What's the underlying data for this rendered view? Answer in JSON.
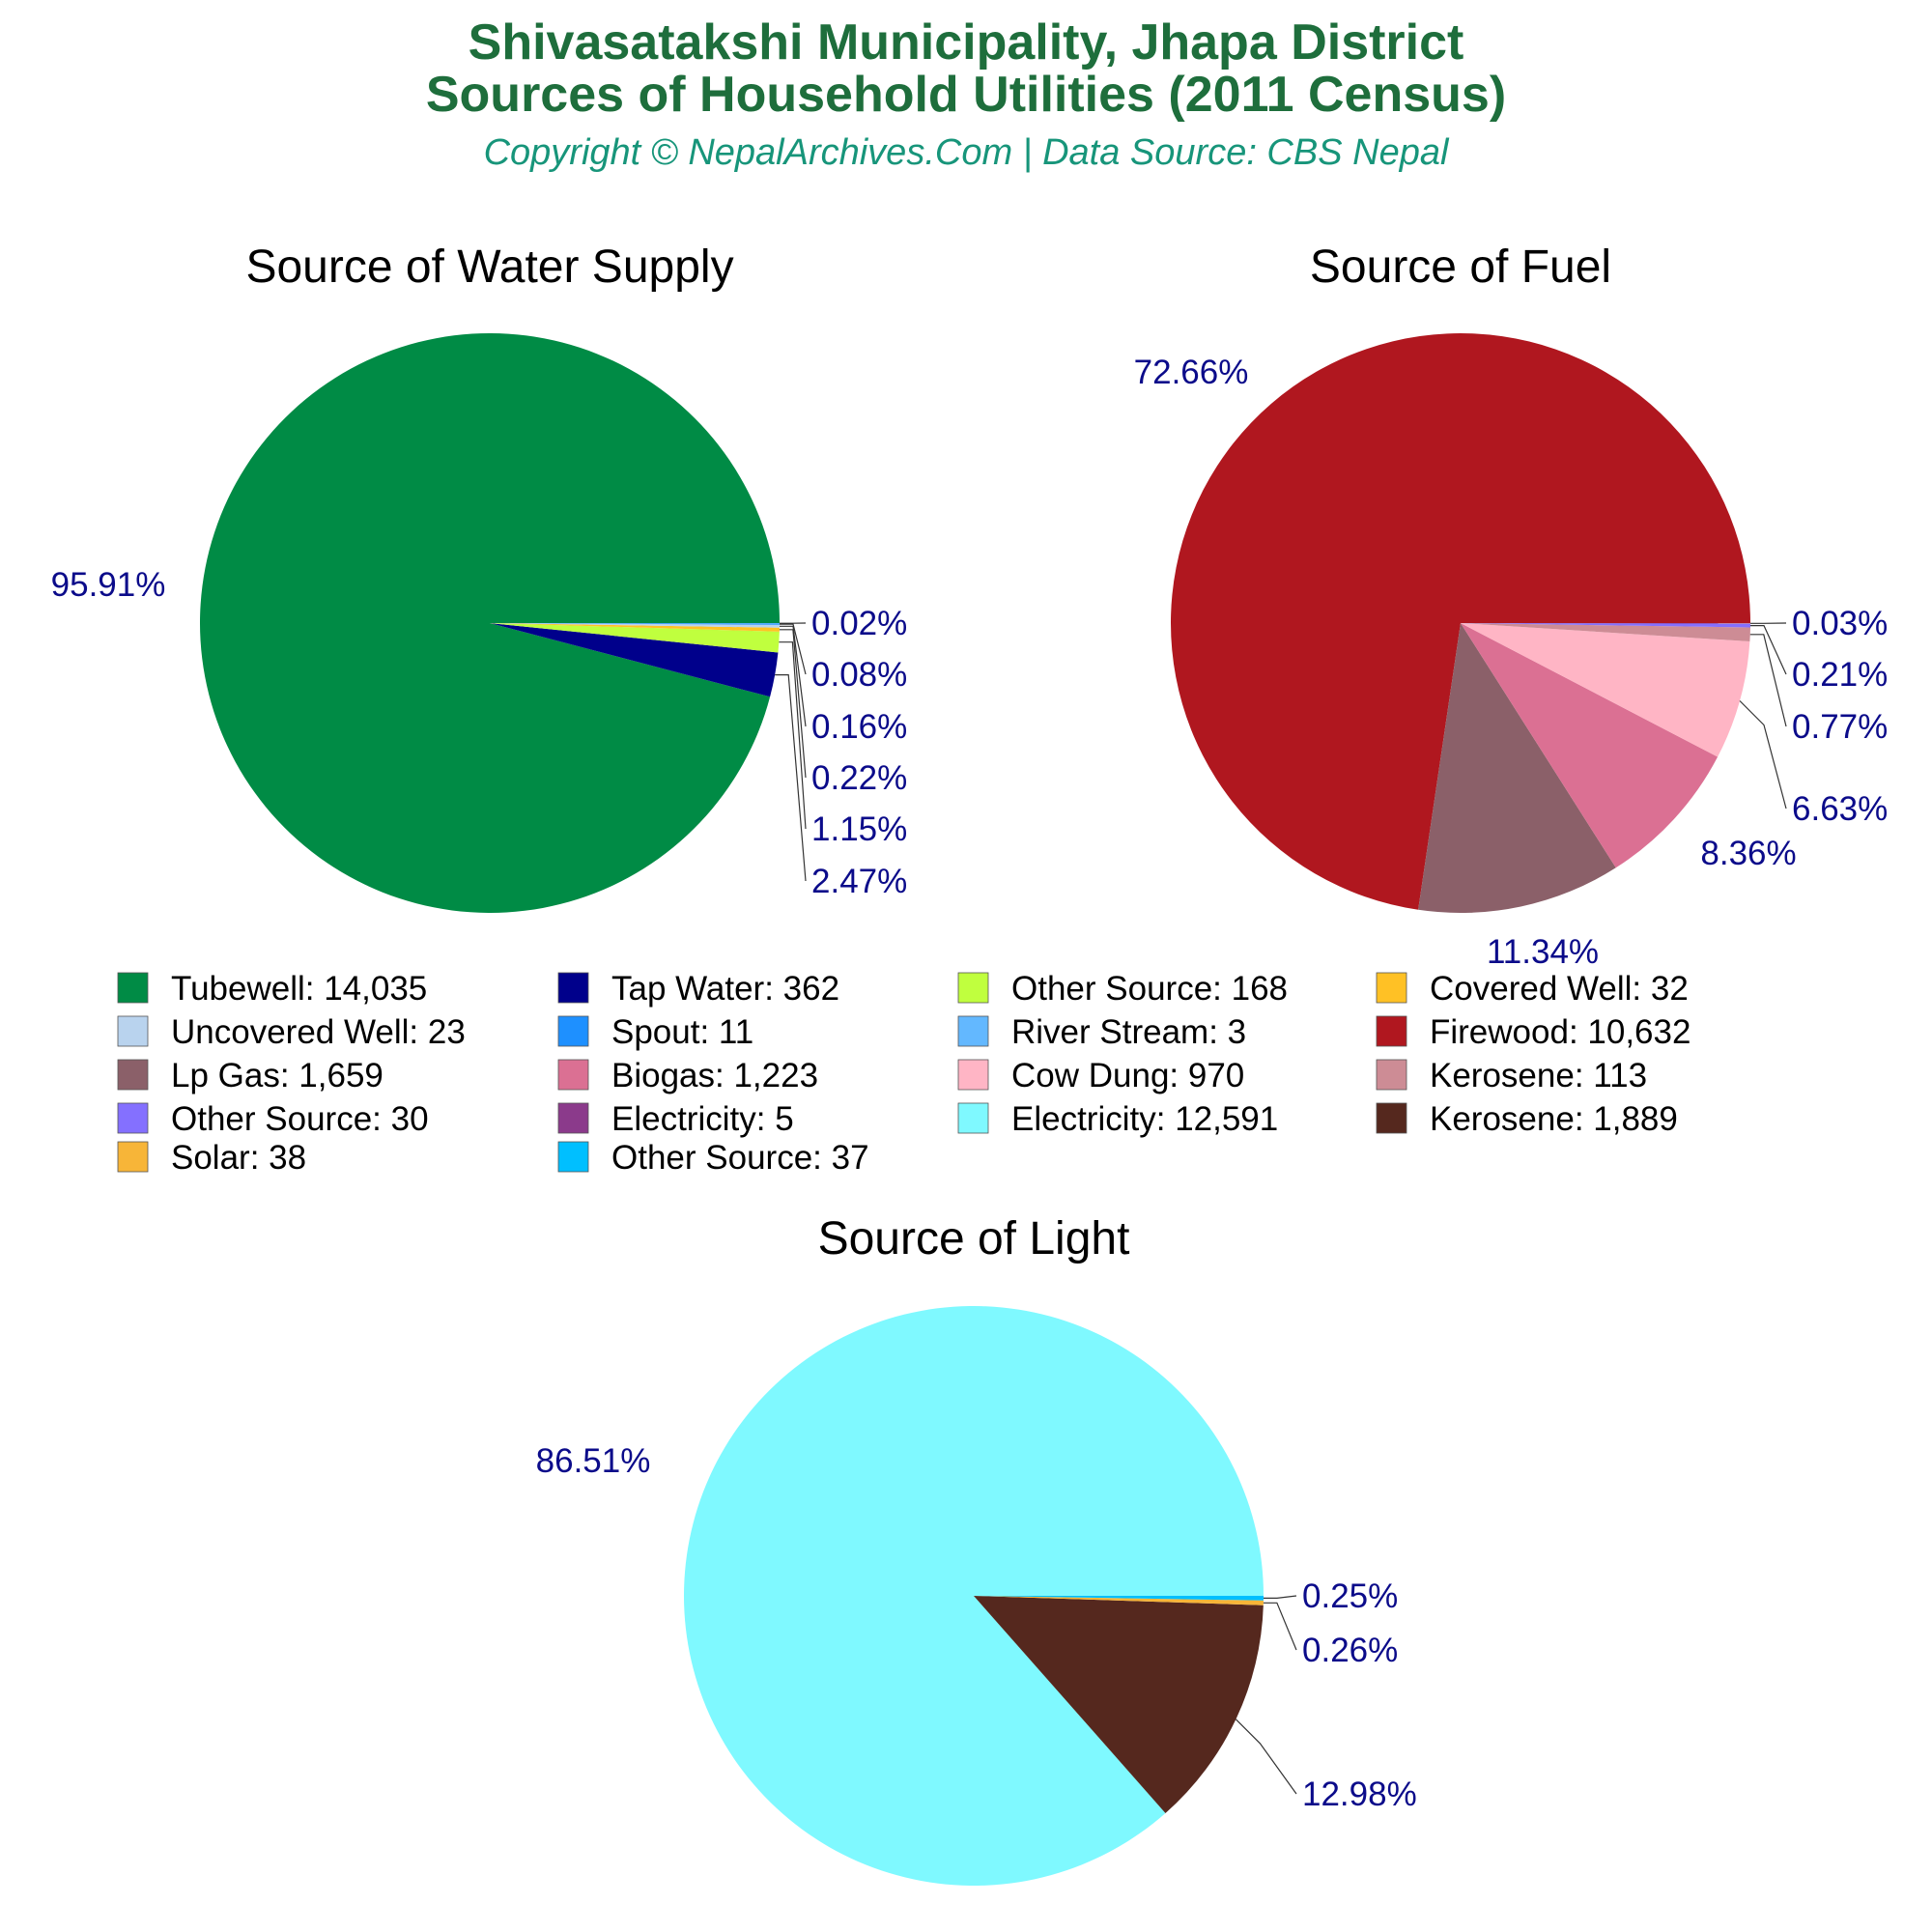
{
  "header": {
    "title_line1": "Shivasatakshi Municipality, Jhapa District",
    "title_line2": "Sources of Household Utilities (2011 Census)",
    "subtitle": "Copyright © NepalArchives.Com | Data Source: CBS Nepal"
  },
  "chart_data": [
    {
      "type": "pie",
      "title": "Source of Water Supply",
      "slices": [
        {
          "label": "Tubewell",
          "value": 14035,
          "percent": "95.91%",
          "color": "#008b45"
        },
        {
          "label": "Tap Water",
          "value": 362,
          "percent": "2.47%",
          "color": "#00008b"
        },
        {
          "label": "Other Source",
          "value": 168,
          "percent": "1.15%",
          "color": "#c0ff3e"
        },
        {
          "label": "Covered Well",
          "value": 32,
          "percent": "0.22%",
          "color": "#ffc125"
        },
        {
          "label": "Uncovered Well",
          "value": 23,
          "percent": "0.16%",
          "color": "#b9d3ee"
        },
        {
          "label": "Spout",
          "value": 11,
          "percent": "0.08%",
          "color": "#1e90ff"
        },
        {
          "label": "River Stream",
          "value": 3,
          "percent": "0.02%",
          "color": "#63b8ff"
        }
      ]
    },
    {
      "type": "pie",
      "title": "Source of Fuel",
      "slices": [
        {
          "label": "Firewood",
          "value": 10632,
          "percent": "72.66%",
          "color": "#b0171f"
        },
        {
          "label": "Lp Gas",
          "value": 1659,
          "percent": "11.34%",
          "color": "#8b6069"
        },
        {
          "label": "Biogas",
          "value": 1223,
          "percent": "8.36%",
          "color": "#db7093"
        },
        {
          "label": "Cow Dung",
          "value": 970,
          "percent": "6.63%",
          "color": "#ffb5c5"
        },
        {
          "label": "Kerosene",
          "value": 113,
          "percent": "0.77%",
          "color": "#cd8c95"
        },
        {
          "label": "Other Source",
          "value": 30,
          "percent": "0.21%",
          "color": "#8470ff"
        },
        {
          "label": "Electricity",
          "value": 5,
          "percent": "0.03%",
          "color": "#8b3a8b"
        }
      ]
    },
    {
      "type": "pie",
      "title": "Source of Light",
      "slices": [
        {
          "label": "Electricity",
          "value": 12591,
          "percent": "86.51%",
          "color": "#7ff9ff"
        },
        {
          "label": "Kerosene",
          "value": 1889,
          "percent": "12.98%",
          "color": "#55281e"
        },
        {
          "label": "Solar",
          "value": 38,
          "percent": "0.26%",
          "color": "#f7b538"
        },
        {
          "label": "Other Source",
          "value": 37,
          "percent": "0.25%",
          "color": "#00bfff"
        }
      ]
    }
  ],
  "legend": [
    {
      "text": "Tubewell: 14,035",
      "color": "#008b45"
    },
    {
      "text": "Tap Water: 362",
      "color": "#00008b"
    },
    {
      "text": "Other Source: 168",
      "color": "#c0ff3e"
    },
    {
      "text": "Covered Well: 32",
      "color": "#ffc125"
    },
    {
      "text": "Uncovered Well: 23",
      "color": "#b9d3ee"
    },
    {
      "text": "Spout: 11",
      "color": "#1e90ff"
    },
    {
      "text": "River Stream: 3",
      "color": "#63b8ff"
    },
    {
      "text": "Firewood: 10,632",
      "color": "#b0171f"
    },
    {
      "text": "Lp Gas: 1,659",
      "color": "#8b6069"
    },
    {
      "text": "Biogas: 1,223",
      "color": "#db7093"
    },
    {
      "text": "Cow Dung: 970",
      "color": "#ffb5c5"
    },
    {
      "text": "Kerosene: 113",
      "color": "#cd8c95"
    },
    {
      "text": "Other Source: 30",
      "color": "#8470ff"
    },
    {
      "text": "Electricity: 5",
      "color": "#8b3a8b"
    },
    {
      "text": "Electricity: 12,591",
      "color": "#7ff9ff"
    },
    {
      "text": "Kerosene: 1,889",
      "color": "#55281e"
    },
    {
      "text": "Solar: 38",
      "color": "#f7b538"
    },
    {
      "text": "Other Source: 37",
      "color": "#00bfff"
    }
  ]
}
